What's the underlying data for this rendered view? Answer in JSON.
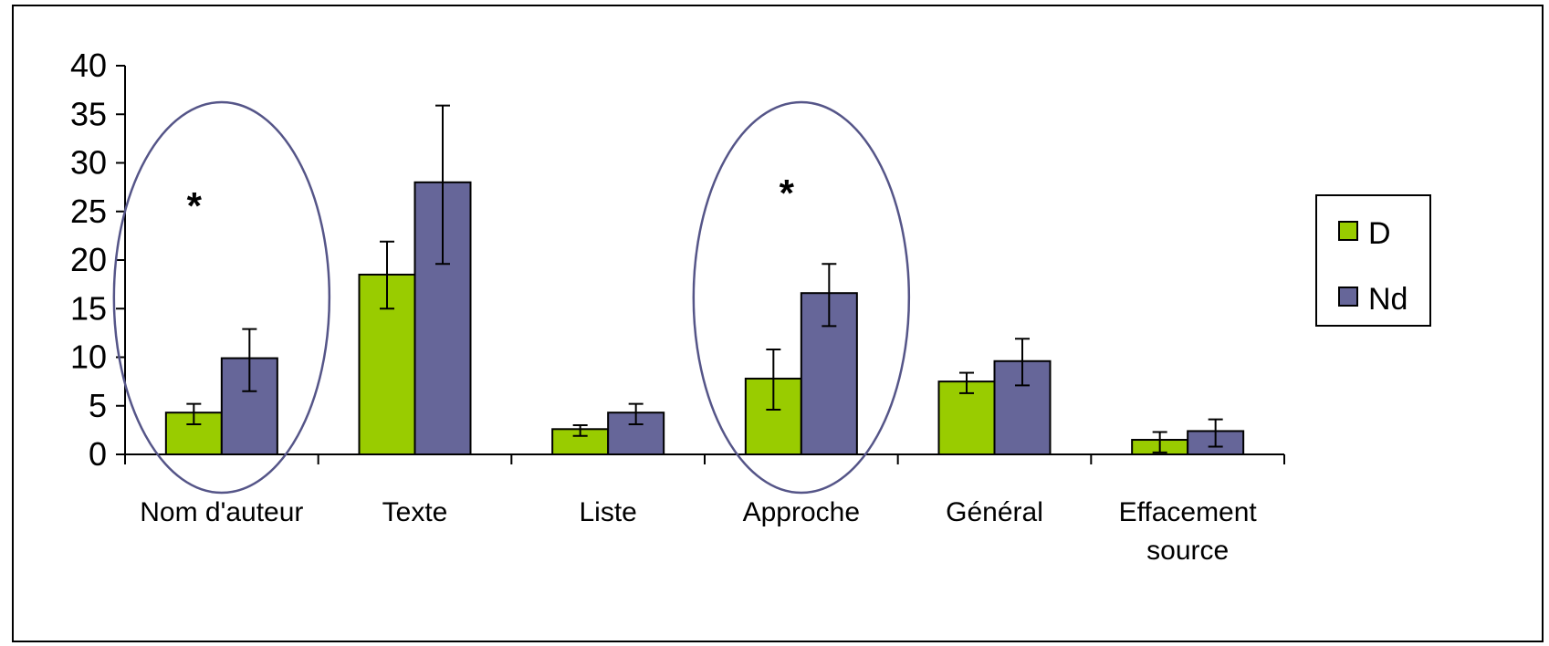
{
  "chart_data": {
    "type": "bar",
    "categories": [
      [
        "Nom d'auteur"
      ],
      [
        "Texte"
      ],
      [
        "Liste"
      ],
      [
        "Approche"
      ],
      [
        "Général"
      ],
      [
        "Effacement",
        "source"
      ]
    ],
    "series": [
      {
        "name": "D",
        "color": "#99cc00",
        "values": [
          4.3,
          18.5,
          2.6,
          7.8,
          7.5,
          1.5
        ],
        "error_low": [
          3.1,
          15.0,
          1.9,
          4.6,
          6.3,
          0.2
        ],
        "error_high": [
          5.2,
          21.9,
          3.0,
          10.8,
          8.4,
          2.3
        ]
      },
      {
        "name": "Nd",
        "color": "#666699",
        "values": [
          9.9,
          28.0,
          4.3,
          16.6,
          9.6,
          2.4
        ],
        "error_low": [
          6.5,
          19.6,
          3.1,
          13.2,
          7.1,
          0.8
        ],
        "error_high": [
          12.9,
          35.9,
          5.2,
          19.6,
          11.9,
          3.6
        ]
      }
    ],
    "ylim": [
      0,
      40
    ],
    "yticks": [
      0,
      5,
      10,
      15,
      20,
      25,
      30,
      35,
      40
    ],
    "annotations": [
      {
        "text": "*",
        "category_index": 0
      },
      {
        "text": "*",
        "category_index": 3
      }
    ],
    "highlighted_categories": [
      0,
      3
    ],
    "highlight_color": "#555588",
    "legend_position": "right",
    "grid": false
  }
}
